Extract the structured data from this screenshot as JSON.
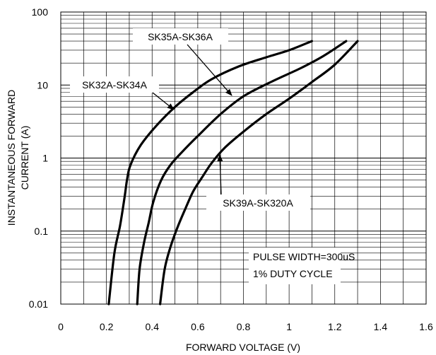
{
  "chart_data": {
    "type": "line",
    "title": "",
    "xlabel": "FORWARD VOLTAGE (V)",
    "ylabel_lines": [
      "INSTANTANEOUS FORWARD",
      "CURRENT (A)"
    ],
    "xlim": [
      0,
      1.6
    ],
    "ylim": [
      0.01,
      100
    ],
    "y_scale": "log",
    "grid": true,
    "x_ticks": [
      {
        "value": 0,
        "label": "0"
      },
      {
        "value": 0.2,
        "label": "0.2"
      },
      {
        "value": 0.4,
        "label": "0.4"
      },
      {
        "value": 0.6,
        "label": "0.6"
      },
      {
        "value": 0.8,
        "label": "0.8"
      },
      {
        "value": 1.0,
        "label": "1"
      },
      {
        "value": 1.2,
        "label": "1.2"
      },
      {
        "value": 1.4,
        "label": "1.4"
      },
      {
        "value": 1.6,
        "label": "1.6"
      }
    ],
    "y_ticks": [
      {
        "value": 0.01,
        "label": "0.01"
      },
      {
        "value": 0.1,
        "label": "0.1"
      },
      {
        "value": 1,
        "label": "1"
      },
      {
        "value": 10,
        "label": "10"
      },
      {
        "value": 100,
        "label": "100"
      }
    ],
    "series": [
      {
        "name": "SK32A-SK34A",
        "points": [
          [
            0.21,
            0.01
          ],
          [
            0.235,
            0.05
          ],
          [
            0.26,
            0.12
          ],
          [
            0.28,
            0.3
          ],
          [
            0.29,
            0.5
          ],
          [
            0.305,
            0.8
          ],
          [
            0.35,
            1.5
          ],
          [
            0.42,
            2.8
          ],
          [
            0.5,
            5
          ],
          [
            0.58,
            8
          ],
          [
            0.66,
            12
          ],
          [
            0.78,
            18
          ],
          [
            0.9,
            24
          ],
          [
            1.0,
            30
          ],
          [
            1.1,
            40
          ]
        ]
      },
      {
        "name": "SK35A-SK36A",
        "points": [
          [
            0.335,
            0.01
          ],
          [
            0.345,
            0.03
          ],
          [
            0.365,
            0.07
          ],
          [
            0.385,
            0.13
          ],
          [
            0.405,
            0.25
          ],
          [
            0.44,
            0.5
          ],
          [
            0.48,
            0.8
          ],
          [
            0.53,
            1.2
          ],
          [
            0.6,
            2
          ],
          [
            0.7,
            4
          ],
          [
            0.8,
            7
          ],
          [
            0.92,
            11
          ],
          [
            1.05,
            17
          ],
          [
            1.15,
            25
          ],
          [
            1.25,
            40
          ]
        ]
      },
      {
        "name": "SK39A-SK320A",
        "points": [
          [
            0.435,
            0.01
          ],
          [
            0.455,
            0.03
          ],
          [
            0.48,
            0.06
          ],
          [
            0.51,
            0.11
          ],
          [
            0.545,
            0.2
          ],
          [
            0.58,
            0.35
          ],
          [
            0.62,
            0.55
          ],
          [
            0.66,
            0.85
          ],
          [
            0.72,
            1.4
          ],
          [
            0.8,
            2.3
          ],
          [
            0.9,
            4
          ],
          [
            1.0,
            6.5
          ],
          [
            1.1,
            11
          ],
          [
            1.2,
            19
          ],
          [
            1.3,
            40
          ]
        ]
      }
    ],
    "annotations": [
      {
        "text": "SK35A-SK36A",
        "arrow_from": [
          0.62,
          37
        ],
        "arrow_to": [
          0.78,
          5.5
        ]
      },
      {
        "text": "SK32A-SK34A",
        "arrow_from": [
          0.42,
          5.5
        ],
        "arrow_to": [
          0.48,
          3.4
        ]
      },
      {
        "text": "SK39A-SK320A",
        "arrow_from": [
          0.74,
          0.38
        ],
        "arrow_to": [
          0.72,
          1.45
        ]
      },
      {
        "text": "PULSE WIDTH=300uS"
      },
      {
        "text": "1% DUTY CYCLE"
      }
    ]
  }
}
